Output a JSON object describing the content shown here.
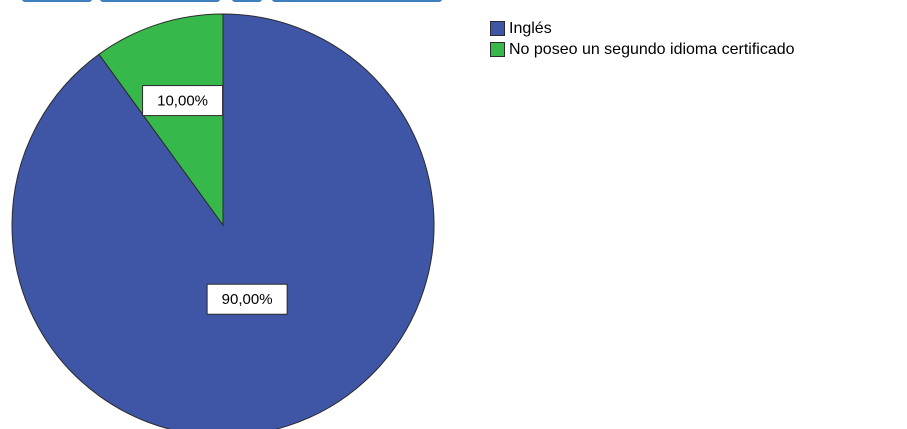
{
  "chart_data": {
    "type": "pie",
    "slices": [
      {
        "label": "Inglés",
        "value": 90.0,
        "display": "90,00%",
        "color": "#3f55a6"
      },
      {
        "label": "No poseo un segundo idioma certificado",
        "value": 10.0,
        "display": "10,00%",
        "color": "#37b84a"
      }
    ],
    "start_angle": "12 o'clock",
    "direction": "clockwise",
    "legend_position": "top-right"
  },
  "colors": {
    "title_fragment": "#3f7fbf",
    "outline": "#2b2b2b"
  }
}
